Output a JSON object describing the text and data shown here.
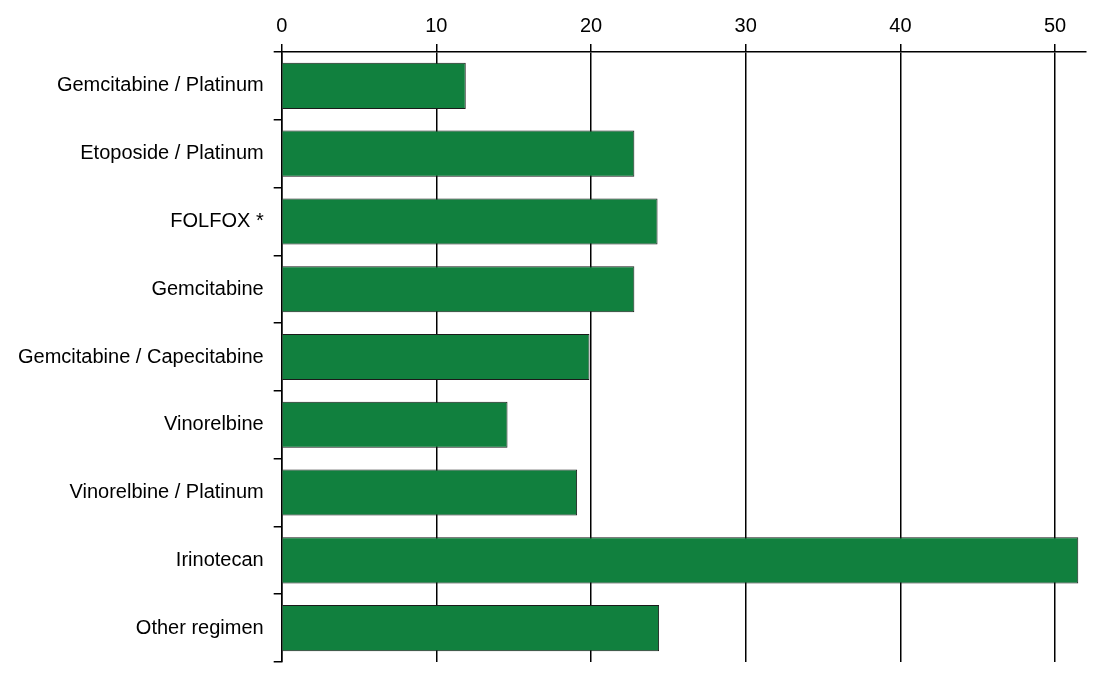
{
  "chart_data": {
    "type": "bar",
    "orientation": "horizontal",
    "categories": [
      "Gemcitabine / Platinum",
      "Etoposide / Platinum",
      "FOLFOX *",
      "Gemcitabine",
      "Gemcitabine / Capecitabine",
      "Vinorelbine",
      "Vinorelbine / Platinum",
      "Irinotecan",
      "Other regimen"
    ],
    "values": [
      11.9,
      22.8,
      24.3,
      22.8,
      19.9,
      14.6,
      19.1,
      51.5,
      24.4
    ],
    "color": "#11803e",
    "xlim": [
      0,
      52
    ],
    "xticks": [
      0,
      10,
      20,
      30,
      40,
      50
    ],
    "grid": "x",
    "legend": false
  }
}
